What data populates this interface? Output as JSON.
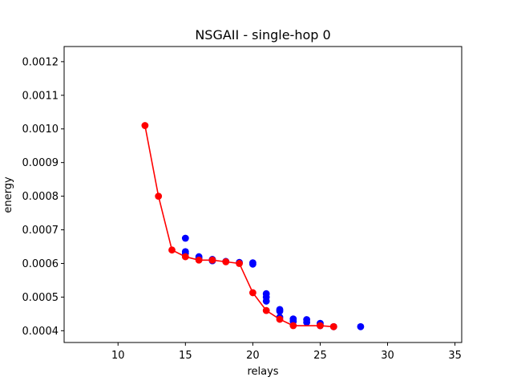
{
  "chart_data": {
    "type": "scatter",
    "title": "NSGAII - single-hop 0",
    "xlabel": "relays",
    "ylabel": "energy",
    "xlim": [
      6.0,
      35.5
    ],
    "ylim": [
      0.000365,
      0.001245
    ],
    "xticks": [
      10,
      15,
      20,
      25,
      30,
      35
    ],
    "yticks": [
      0.0004,
      0.0005,
      0.0006,
      0.0007,
      0.0008,
      0.0009,
      0.001,
      0.0011,
      0.0012
    ],
    "ytick_labels": [
      "0.0004",
      "0.0005",
      "0.0006",
      "0.0007",
      "0.0008",
      "0.0009",
      "0.0010",
      "0.0011",
      "0.0012"
    ],
    "grid": false,
    "series": [
      {
        "color": "#0000ff",
        "style": "scatter",
        "points": [
          [
            15,
            0.000675
          ],
          [
            15,
            0.000635
          ],
          [
            15,
            0.00063
          ],
          [
            16,
            0.00062
          ],
          [
            16,
            0.000615
          ],
          [
            17,
            0.000612
          ],
          [
            17,
            0.000608
          ],
          [
            18,
            0.000606
          ],
          [
            19,
            0.000603
          ],
          [
            20,
            0.000602
          ],
          [
            20,
            0.000598
          ],
          [
            21,
            0.00051
          ],
          [
            21,
            0.0005
          ],
          [
            21,
            0.000488
          ],
          [
            22,
            0.000463
          ],
          [
            22,
            0.000458
          ],
          [
            22,
            0.00044
          ],
          [
            23,
            0.000435
          ],
          [
            23,
            0.000428
          ],
          [
            24,
            0.000433
          ],
          [
            24,
            0.000425
          ],
          [
            25,
            0.000422
          ],
          [
            25,
            0.000415
          ],
          [
            26,
            0.000412
          ],
          [
            28,
            0.000412
          ]
        ]
      },
      {
        "color": "#ff0000",
        "style": "line+markers",
        "points": [
          [
            12,
            0.00101
          ],
          [
            13,
            0.0008
          ],
          [
            14,
            0.00064
          ],
          [
            15,
            0.00062
          ],
          [
            16,
            0.00061
          ],
          [
            17,
            0.00061
          ],
          [
            18,
            0.000605
          ],
          [
            19,
            0.0006
          ],
          [
            20,
            0.000513
          ],
          [
            21,
            0.00046
          ],
          [
            22,
            0.000434
          ],
          [
            23,
            0.000415
          ],
          [
            25,
            0.000415
          ],
          [
            26,
            0.000412
          ]
        ]
      }
    ]
  }
}
